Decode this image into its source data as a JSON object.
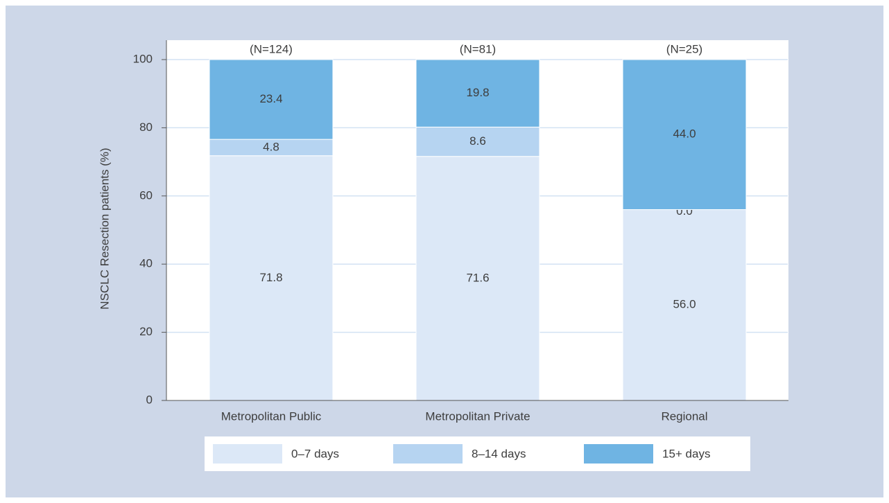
{
  "chart_data": {
    "type": "stacked-bar",
    "y_label": "NSCLC Resection patients (%)",
    "categories": [
      "Metropolitan Public",
      "Metropolitan Private",
      "Regional"
    ],
    "category_notes": [
      "(N=124)",
      "(N=81)",
      "(N=25)"
    ],
    "series": [
      {
        "name": "0–7 days",
        "color": "#dce8f7",
        "values": [
          71.8,
          71.6,
          56.0
        ],
        "value_labels": [
          "71.8",
          "71.6",
          "56.0"
        ]
      },
      {
        "name": "8–14 days",
        "color": "#b6d4f1",
        "values": [
          4.8,
          8.6,
          0.0
        ],
        "value_labels": [
          "4.8",
          "8.6",
          "0.0"
        ]
      },
      {
        "name": "15+ days",
        "color": "#6fb4e3",
        "values": [
          23.4,
          19.8,
          44.0
        ],
        "value_labels": [
          "23.4",
          "19.8",
          "44.0"
        ]
      }
    ],
    "ylim": [
      0,
      100
    ],
    "yticks": [
      0,
      20,
      40,
      60,
      80,
      100
    ],
    "grid": true,
    "legend": "bottom"
  }
}
